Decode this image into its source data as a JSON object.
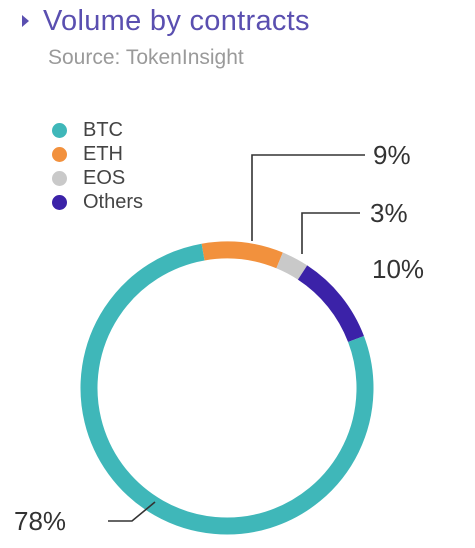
{
  "chart_data": {
    "type": "donut",
    "title": "Volume by contracts",
    "subtitle": "Source: TokenInsight",
    "legend_position": "top-left",
    "series": [
      {
        "name": "BTC",
        "value": 78,
        "label": "78%",
        "color": "#3fb7b9"
      },
      {
        "name": "ETH",
        "value": 9,
        "label": "9%",
        "color": "#f2913d"
      },
      {
        "name": "EOS",
        "value": 3,
        "label": "3%",
        "color": "#c9c9c9"
      },
      {
        "name": "Others",
        "value": 10,
        "label": "10%",
        "color": "#3b22a8"
      }
    ]
  }
}
